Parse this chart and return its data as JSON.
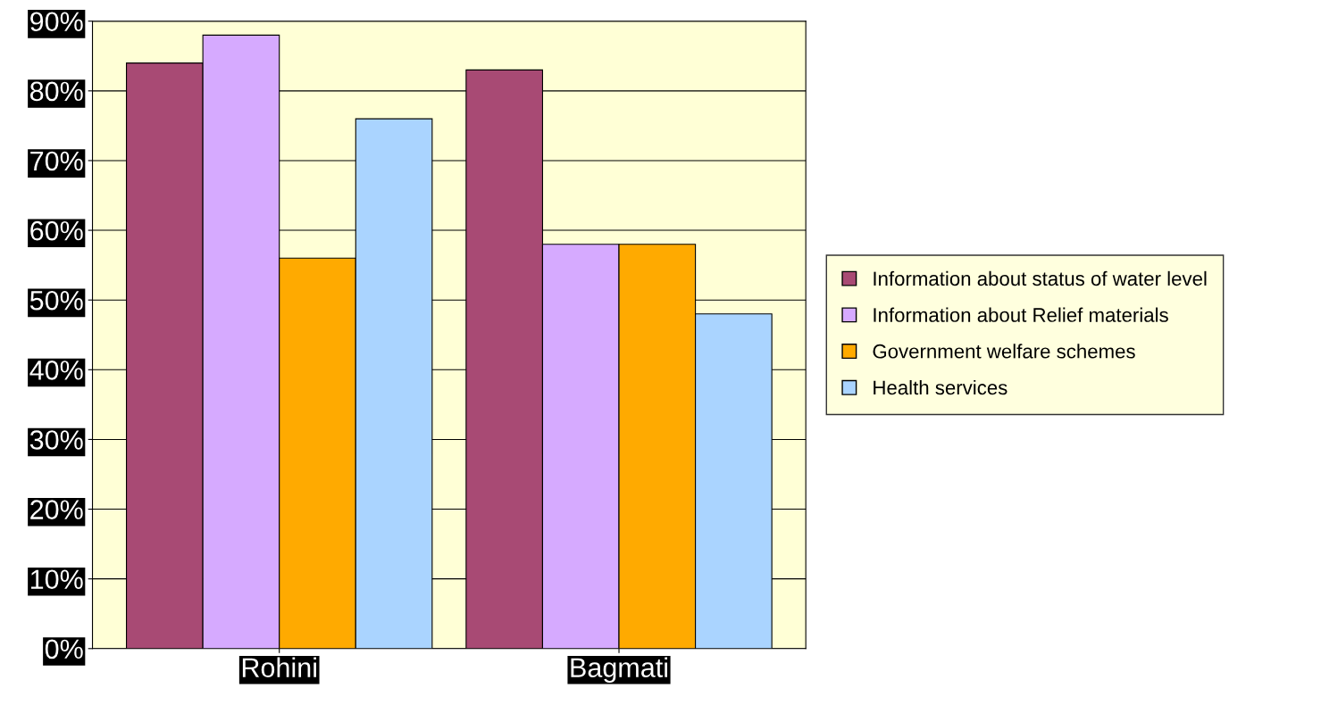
{
  "chart_data": {
    "type": "bar",
    "categories": [
      "Rohini",
      "Bagmati"
    ],
    "series": [
      {
        "name": "Information about status of water level",
        "color": "#a84a74",
        "values": [
          84,
          83
        ]
      },
      {
        "name": "Information about Relief materials",
        "color": "#d6aaff",
        "values": [
          88,
          58
        ]
      },
      {
        "name": "Government welfare schemes",
        "color": "#ffaa00",
        "values": [
          56,
          58
        ]
      },
      {
        "name": "Health services",
        "color": "#aad4ff",
        "values": [
          76,
          48
        ]
      }
    ],
    "ylim": [
      0,
      90
    ],
    "yticks": [
      {
        "value": 0,
        "label": "0%"
      },
      {
        "value": 10,
        "label": "10%"
      },
      {
        "value": 20,
        "label": "20%"
      },
      {
        "value": 30,
        "label": "30%"
      },
      {
        "value": 40,
        "label": "40%"
      },
      {
        "value": 50,
        "label": "50%"
      },
      {
        "value": 60,
        "label": "60%"
      },
      {
        "value": 70,
        "label": "70%"
      },
      {
        "value": 80,
        "label": "80%"
      },
      {
        "value": 90,
        "label": "90%"
      }
    ],
    "grid": "y",
    "legend": "right"
  }
}
